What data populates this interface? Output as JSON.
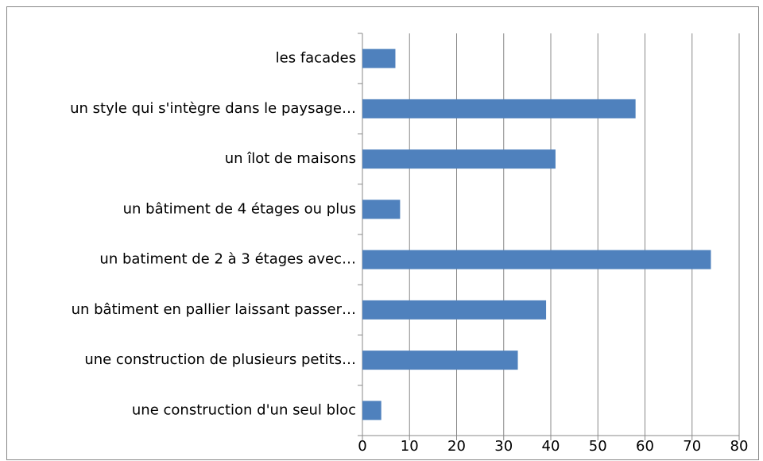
{
  "chart_data": {
    "type": "barh",
    "categories": [
      "les facades",
      "un style qui s'intègre dans le paysage…",
      "un îlot de maisons",
      "un bâtiment de 4 étages ou plus",
      "un batiment de 2 à 3 étages avec…",
      "un bâtiment en pallier laissant passer…",
      "une construction de plusieurs petits…",
      "une construction d'un seul bloc"
    ],
    "values": [
      7,
      58,
      41,
      8,
      74,
      39,
      33,
      4
    ],
    "color": "#4f81bd",
    "xlim": [
      0,
      80
    ],
    "xticks": [
      0,
      10,
      20,
      30,
      40,
      50,
      60,
      70,
      80
    ],
    "grid": true
  }
}
